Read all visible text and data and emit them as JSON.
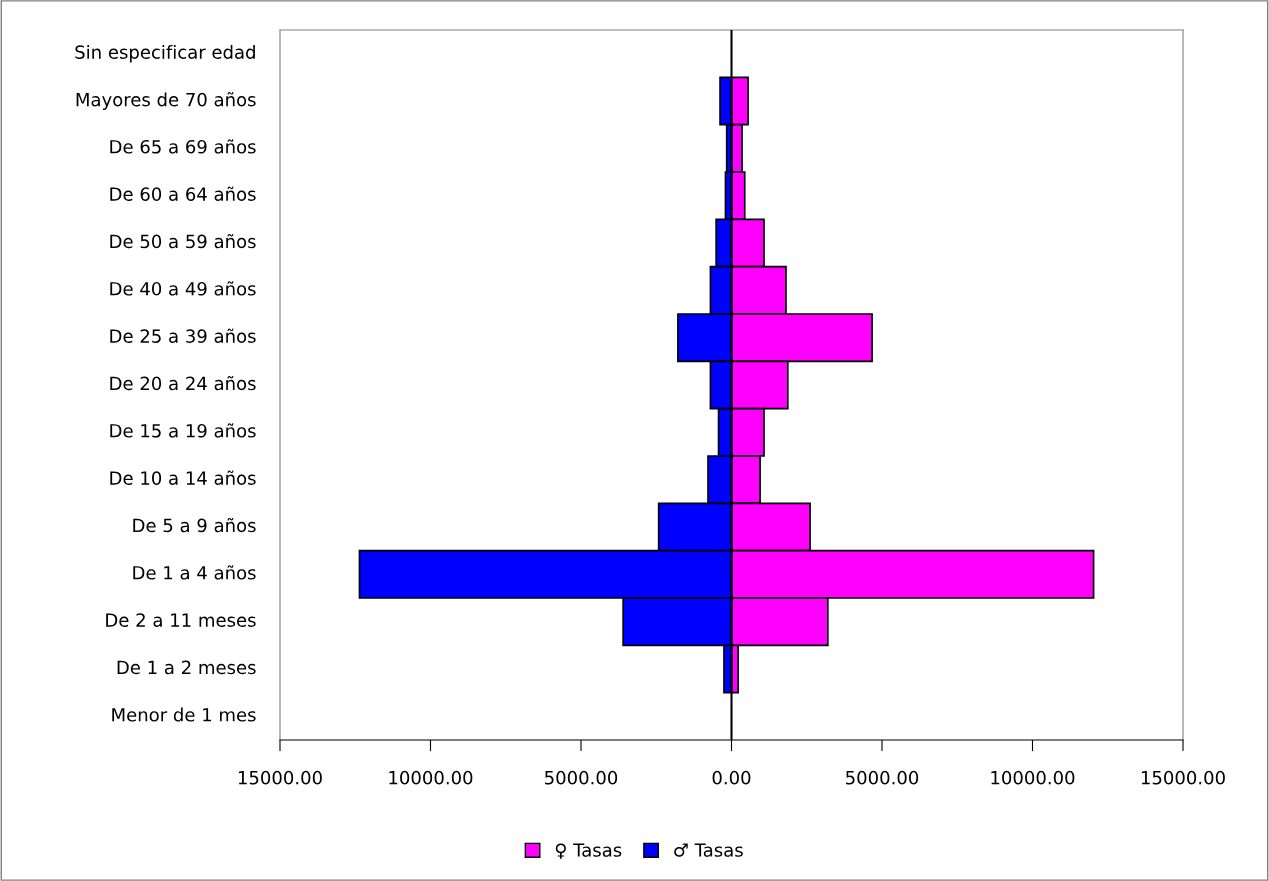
{
  "chart_data": {
    "type": "bar",
    "orientation": "horizontal",
    "stacked": true,
    "categories": [
      "Sin especificar edad",
      "Mayores de 70 años",
      "De 65 a 69 años",
      "De 60 a 64 años",
      "De 50 a 59 años",
      "De 40 a 49 años",
      "De 25 a 39 años",
      "De 20 a 24 años",
      "De 15 a 19 años",
      "De 10 a 14 años",
      "De 5 a 9 años",
      "De 1 a 4 años",
      "De 2 a 11 meses",
      "De 1 a 2 meses",
      "Menor de 1 mes"
    ],
    "series": [
      {
        "name": "♀ Tasas",
        "color": "#ff00ff",
        "values": [
          null,
          550,
          350,
          440,
          1080,
          1810,
          4670,
          1870,
          1080,
          950,
          2610,
          12030,
          3200,
          220,
          null
        ]
      },
      {
        "name": "♂ Tasas",
        "color": "#0000ff",
        "values": [
          null,
          -380,
          -160,
          -200,
          -510,
          -700,
          -1780,
          -700,
          -430,
          -780,
          -2420,
          -12360,
          -3600,
          -250,
          null
        ]
      }
    ],
    "xlim": [
      -15000,
      15000
    ],
    "xticks": [
      {
        "value": -15000,
        "label": "15000.00"
      },
      {
        "value": -10000,
        "label": "10000.00"
      },
      {
        "value": -5000,
        "label": "5000.00"
      },
      {
        "value": 0,
        "label": "0.00"
      },
      {
        "value": 5000,
        "label": "5000.00"
      },
      {
        "value": 10000,
        "label": "10000.00"
      },
      {
        "value": 15000,
        "label": "15000.00"
      }
    ],
    "ref_lines": [
      {
        "axis": "x",
        "value": 0,
        "color": "#000000"
      }
    ],
    "grid": false,
    "legend": "bottom"
  }
}
